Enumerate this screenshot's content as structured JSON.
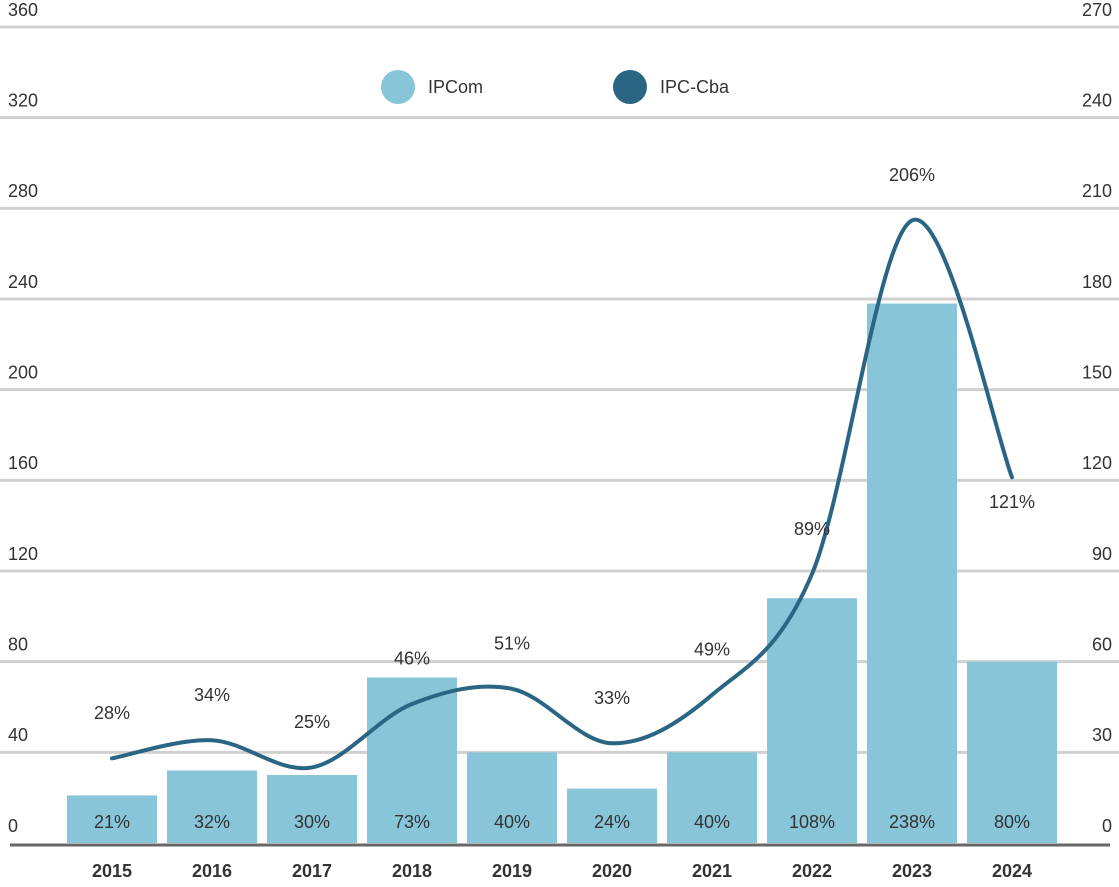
{
  "chart_data": {
    "type": "bar_line",
    "categories": [
      "2015",
      "2016",
      "2017",
      "2018",
      "2019",
      "2020",
      "2021",
      "2022",
      "2023",
      "2024"
    ],
    "series": [
      {
        "name": "IPCom",
        "color": "#89c5d9",
        "type": "bar",
        "values": [
          21,
          32,
          30,
          73,
          40,
          24,
          40,
          108,
          238,
          80
        ],
        "value_labels": [
          "21%",
          "32%",
          "30%",
          "73%",
          "40%",
          "24%",
          "40%",
          "108%",
          "238%",
          "80%"
        ]
      },
      {
        "name": "IPC-Cba",
        "color": "#2a6683",
        "type": "line",
        "axis": "y2",
        "values": [
          28,
          34,
          25,
          46,
          51,
          33,
          49,
          89,
          206,
          121
        ],
        "value_labels": [
          "28%",
          "34%",
          "25%",
          "46%",
          "51%",
          "33%",
          "49%",
          "89%",
          "206%",
          "121%"
        ]
      }
    ],
    "ylim": [
      0,
      360
    ],
    "yticks": [
      0,
      40,
      80,
      120,
      160,
      200,
      240,
      280,
      320,
      360
    ],
    "y2lim": [
      0,
      270
    ],
    "y2ticks": [
      0,
      30,
      60,
      90,
      120,
      150,
      180,
      210,
      240,
      270
    ],
    "grid": true,
    "legend": "top"
  }
}
